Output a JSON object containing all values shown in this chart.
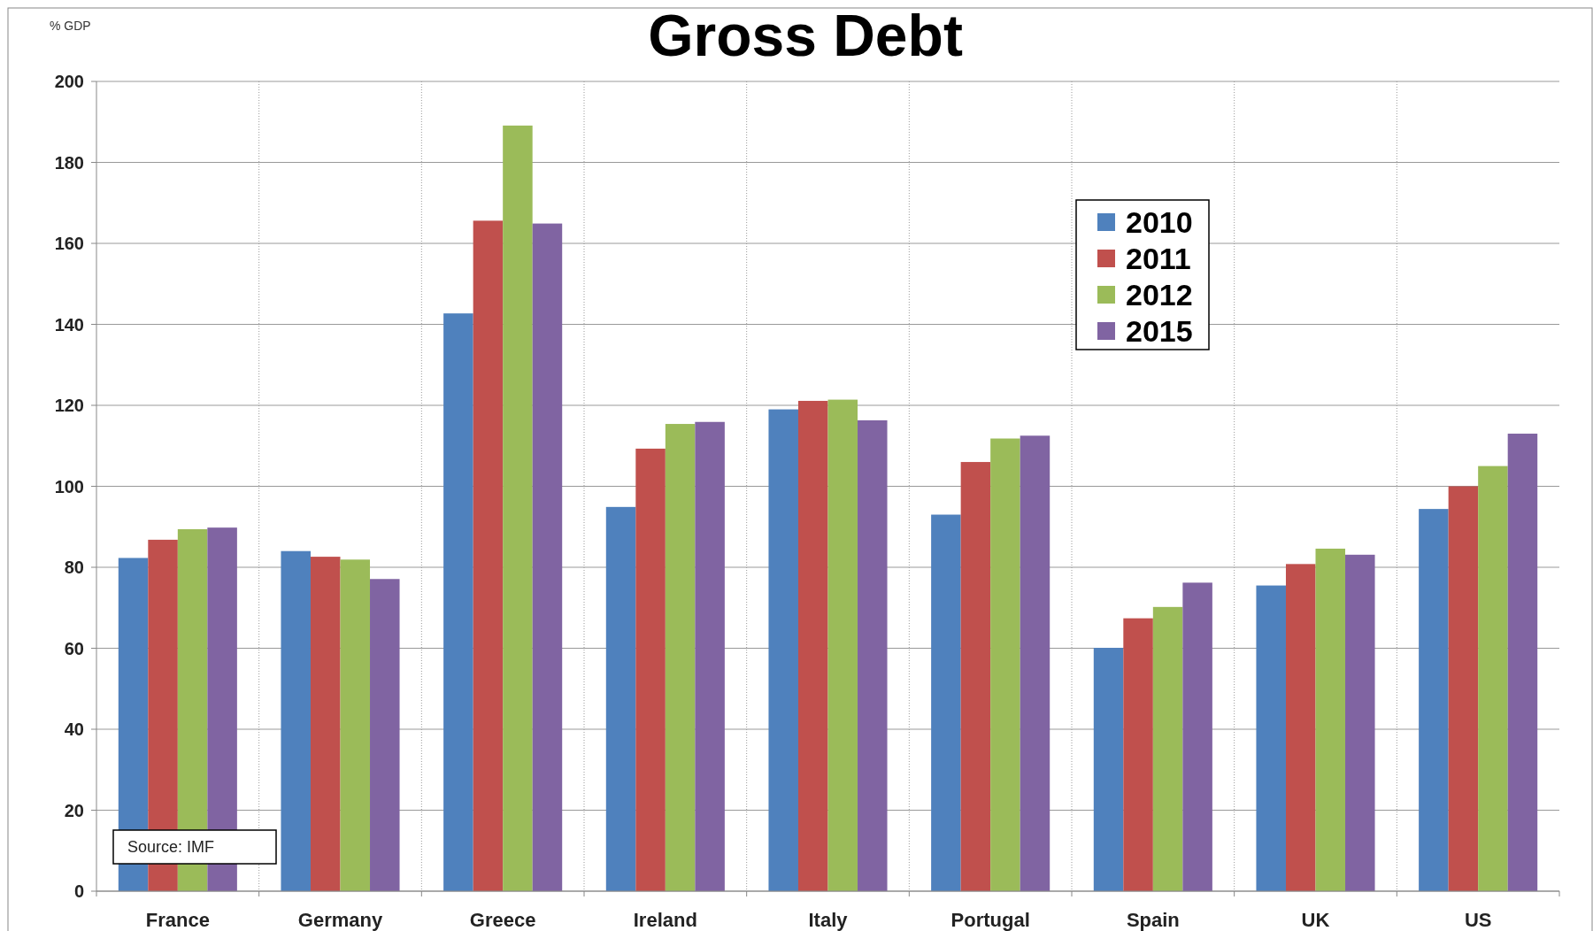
{
  "chart_data": {
    "type": "bar",
    "title": "Gross Debt",
    "ylabel": "% GDP",
    "annotations": [
      "Source: IMF"
    ],
    "categories": [
      "France",
      "Germany",
      "Greece",
      "Ireland",
      "Italy",
      "Portugal",
      "Spain",
      "UK",
      "US"
    ],
    "series": [
      {
        "name": "2010",
        "color": "#4f81bd",
        "values": [
          82.3,
          84.0,
          142.7,
          94.9,
          119.0,
          93.0,
          60.1,
          75.5,
          94.4
        ]
      },
      {
        "name": "2011",
        "color": "#c0504d",
        "values": [
          86.8,
          82.6,
          165.6,
          109.3,
          121.1,
          106.0,
          67.4,
          80.8,
          100.0
        ]
      },
      {
        "name": "2012",
        "color": "#9bbb59",
        "values": [
          89.4,
          81.9,
          189.1,
          115.4,
          121.4,
          111.8,
          70.2,
          84.6,
          105.0
        ]
      },
      {
        "name": "2015",
        "color": "#8064a2",
        "values": [
          89.8,
          77.1,
          164.9,
          115.9,
          116.3,
          112.5,
          76.2,
          83.1,
          113.0
        ]
      }
    ],
    "ylim": [
      0,
      200
    ],
    "yticks": [
      0,
      20,
      40,
      60,
      80,
      100,
      120,
      140,
      160,
      180,
      200
    ],
    "grid": true,
    "legend": "top right"
  }
}
